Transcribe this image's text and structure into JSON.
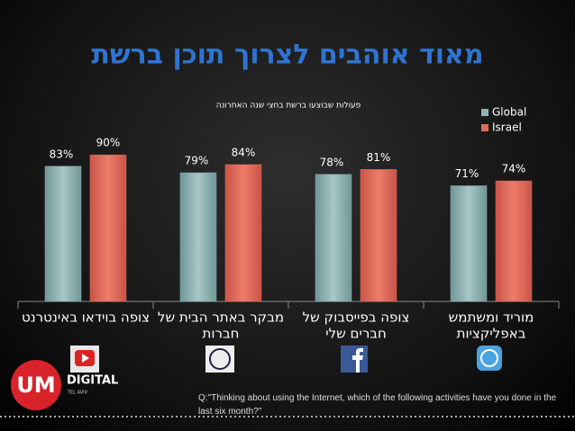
{
  "chart_data": {
    "type": "bar",
    "title": "מאוד אוהבים לצרוך תוכן ברשת",
    "subtitle": "פעולות שבוצעו ברשת בחצי שנה האחרונה",
    "categories": [
      [
        "צופה בוידאו באינטרנט"
      ],
      [
        "מבקר באתר הבית של",
        "חברות"
      ],
      [
        "צופה בפייסבוק של",
        "חברים שלי"
      ],
      [
        "מוריד ומשתמש",
        "באפליקציות"
      ]
    ],
    "series": [
      {
        "name": "Global",
        "color": "#8fb3b3",
        "values": [
          83,
          79,
          78,
          71
        ],
        "value_labels": [
          "83%",
          "79%",
          "78%",
          "71%"
        ]
      },
      {
        "name": "Israel",
        "color": "#df6b5b",
        "values": [
          90,
          84,
          81,
          74
        ],
        "value_labels": [
          "90%",
          "84%",
          "81%",
          "74%"
        ]
      }
    ],
    "legend": "top-right"
  },
  "logo": {
    "mark": "UM",
    "line1": "DIGITAL",
    "line2": "TEL AVIV"
  },
  "footnote": "Q:\"Thinking about using the Internet, which of the following activities have you done in the last six month?\""
}
